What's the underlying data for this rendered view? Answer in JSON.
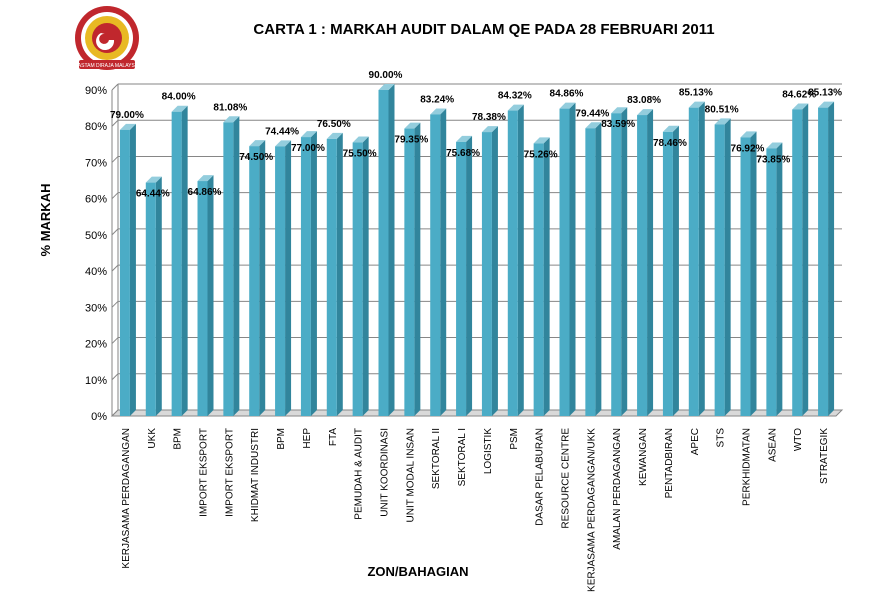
{
  "colors": {
    "bar_front": "#4bacc6",
    "bar_side": "#31859c",
    "bar_top": "#93cddd",
    "grid": "#868686",
    "logo_red": "#c0272d",
    "logo_gold": "#e8b923"
  },
  "logo": {
    "icon": "logo-seal-icon",
    "text": "KASTAM DIRAJA MALAYSIA"
  },
  "chart_data": {
    "type": "bar",
    "title": "CARTA 1 : MARKAH AUDIT DALAM QE PADA 28 FEBRUARI 2011",
    "xlabel": "ZON/BAHAGIAN",
    "ylabel": "% MARKAH",
    "ylim": [
      0,
      90
    ],
    "yticks": [
      "0%",
      "10%",
      "20%",
      "30%",
      "40%",
      "50%",
      "60%",
      "70%",
      "80%",
      "90%"
    ],
    "grid": true,
    "categories": [
      "KERJASAMA PERDAGANGAN",
      "UKK",
      "BPM",
      "IMPORT EKSPORT",
      "IMPORT EKSPORT",
      "KHIDMAT INDUSTRI",
      "BPM",
      "HEP",
      "FTA",
      "PEMUDAH & AUDIT",
      "UNIT KOORDINASI",
      "UNIT MODAL INSAN",
      "SEKTORAL II",
      "SEKTORAL I",
      "LOGISTIK",
      "PSM",
      "DASAR PELABURAN",
      "RESOURCE CENTRE",
      "KERJASAMA PERDAGANGAN/UKK",
      "AMALAN PERDAGANGAN",
      "KEWANGAN",
      "PENTADBIRAN",
      "APEC",
      "STS",
      "PERKHIDMATAN",
      "ASEAN",
      "WTO",
      "STRATEGIK"
    ],
    "values": [
      79.0,
      64.44,
      84.0,
      64.86,
      81.08,
      74.5,
      74.44,
      77.0,
      76.5,
      75.5,
      90.0,
      79.35,
      83.24,
      75.68,
      78.38,
      84.32,
      75.26,
      84.86,
      79.44,
      83.59,
      83.08,
      78.46,
      85.13,
      80.51,
      76.92,
      73.85,
      84.62,
      85.13
    ],
    "data_labels": [
      "79.00%",
      "64.44%",
      "84.00%",
      "64.86%",
      "81.08%",
      "74.50%",
      "74.44%",
      "77.00%",
      "76.50%",
      "75.50%",
      "90.00%",
      "79.35%",
      "83.24%",
      "75.68%",
      "78.38%",
      "84.32%",
      "75.26%",
      "84.86%",
      "79.44%",
      "83.59%",
      "83.08%",
      "78.46%",
      "85.13%",
      "80.51%",
      "76.92%",
      "73.85%",
      "84.62%",
      "85.13%"
    ]
  }
}
